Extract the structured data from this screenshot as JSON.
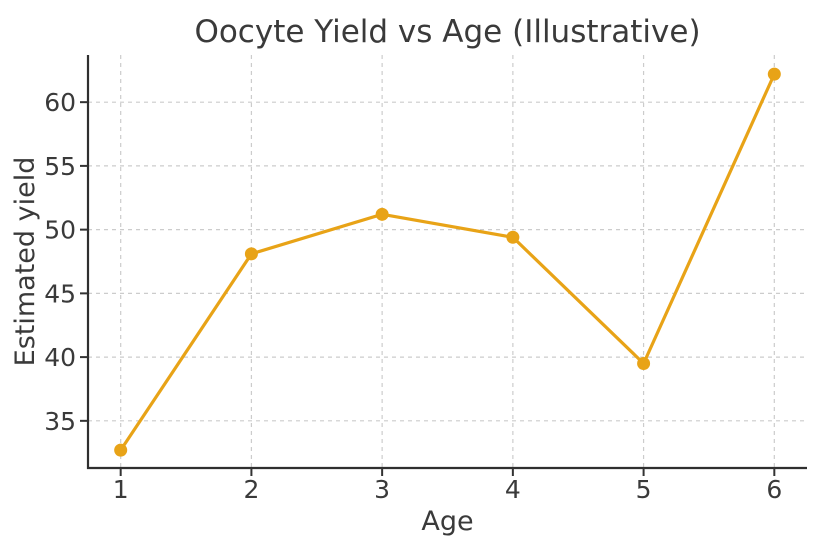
{
  "chart_data": {
    "type": "line",
    "title": "Oocyte Yield vs Age (Illustrative)",
    "xlabel": "Age",
    "ylabel": "Estimated yield",
    "series": [
      {
        "name": "Estimated yield",
        "x": [
          1,
          2,
          3,
          4,
          5,
          6
        ],
        "values": [
          32.7,
          48.1,
          51.2,
          49.4,
          39.5,
          62.2
        ]
      }
    ],
    "xticks": [
      1,
      2,
      3,
      4,
      5,
      6
    ],
    "yticks": [
      35,
      40,
      45,
      50,
      55,
      60
    ],
    "xlim": [
      0.75,
      6.25
    ],
    "ylim": [
      31.3,
      63.7
    ],
    "grid": true,
    "grid_style": "dashed",
    "legend": false,
    "colors": {
      "line": "#E8A317",
      "marker": "#E8A317",
      "grid": "#cccccc",
      "spine": "#2f2f2f",
      "tick": "#333333",
      "text": "#3a3a3a",
      "background": "#ffffff"
    },
    "marker": "circle",
    "marker_radius": 6.5,
    "line_width": 3.2
  }
}
